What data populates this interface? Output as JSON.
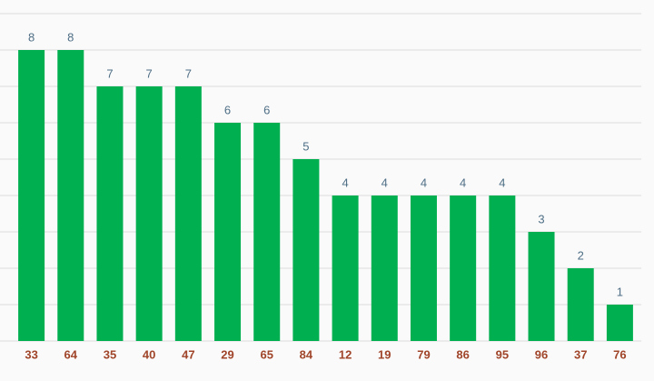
{
  "chart_data": {
    "type": "bar",
    "categories": [
      "33",
      "64",
      "35",
      "40",
      "47",
      "29",
      "65",
      "84",
      "12",
      "19",
      "79",
      "86",
      "95",
      "96",
      "37",
      "76"
    ],
    "values": [
      8,
      8,
      7,
      7,
      7,
      6,
      6,
      5,
      4,
      4,
      4,
      4,
      4,
      3,
      2,
      1
    ],
    "color": "#00b050",
    "ylim": [
      0,
      9
    ],
    "yticks": [
      0,
      1,
      2,
      3,
      4,
      5,
      6,
      7,
      8,
      9
    ],
    "grid": true
  }
}
